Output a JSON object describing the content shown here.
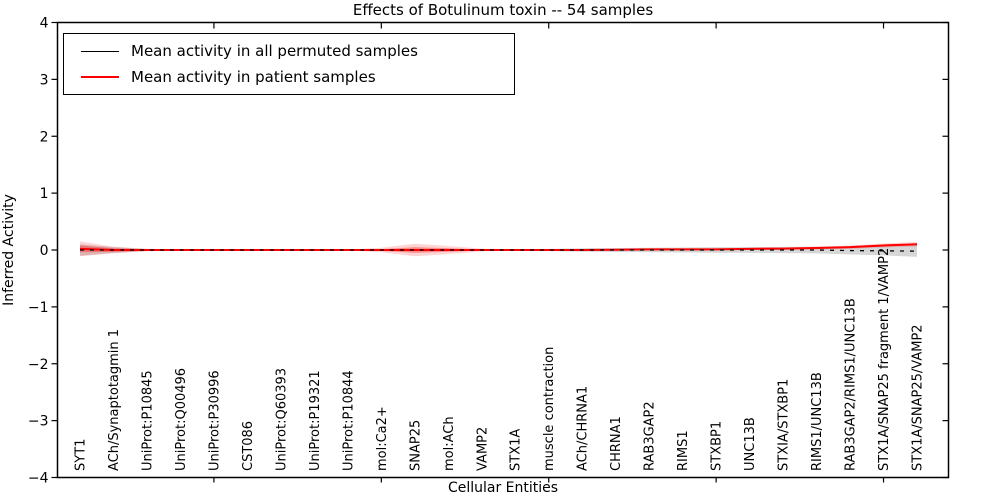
{
  "chart": {
    "title": "Effects of Botulinum toxin -- 54 samples",
    "xlabel": "Cellular Entities",
    "ylabel": "Inferred Activity"
  },
  "legend": {
    "items": [
      {
        "label": "Mean activity in all permuted samples",
        "color": "#000000"
      },
      {
        "label": "Mean activity in patient samples",
        "color": "#ff0000"
      }
    ]
  },
  "chart_data": {
    "type": "line",
    "title": "Effects of Botulinum toxin -- 54 samples",
    "xlabel": "Cellular Entities",
    "ylabel": "Inferred Activity",
    "ylim": [
      -4,
      4
    ],
    "yticks": [
      4,
      3,
      2,
      1,
      0,
      -1,
      -2,
      -3,
      -4
    ],
    "yticklabels": [
      "4",
      "3",
      "2",
      "1",
      "0",
      "−1",
      "−2",
      "−3",
      "−4"
    ],
    "grid": false,
    "legend_position": "upper left",
    "categories": [
      "SYT1",
      "ACh/Synaptotagmin 1",
      "UniProt:P10845",
      "UniProt:Q00496",
      "UniProt:P30996",
      "CST086",
      "UniProt:Q60393",
      "UniProt:P19321",
      "UniProt:P10844",
      "mol:Ca2+",
      "SNAP25",
      "mol:ACh",
      "VAMP2",
      "STX1A",
      "muscle contraction",
      "ACh/CHRNA1",
      "CHRNA1",
      "RAB3GAP2",
      "RIMS1",
      "STXBP1",
      "UNC13B",
      "STXIA/STXBP1",
      "RIMS1/UNC13B",
      "RAB3GAP2/RIMS1/UNC13B",
      "STX1A/SNAP25 fragment 1/VAMP2",
      "STX1A/SNAP25/VAMP2"
    ],
    "xtick_label_indices": [
      4,
      9,
      14,
      19,
      24
    ],
    "series": [
      {
        "name": "Mean activity in all permuted samples",
        "color": "#000000",
        "style": "dashed",
        "values": [
          0,
          0,
          0,
          0,
          0,
          0,
          0,
          0,
          0,
          0,
          0,
          0,
          0,
          0,
          0,
          0,
          0,
          0,
          0,
          0,
          0,
          0,
          0,
          -0.01,
          -0.015,
          -0.02
        ]
      },
      {
        "name": "Mean activity in patient samples",
        "color": "#ff0000",
        "style": "solid",
        "values": [
          0.02,
          0,
          0,
          0,
          0,
          0,
          0,
          0,
          0,
          0,
          0,
          0,
          0,
          0,
          0,
          0,
          0.005,
          0.01,
          0.01,
          0.012,
          0.02,
          0.025,
          0.035,
          0.05,
          0.08,
          0.1
        ]
      }
    ],
    "bands": [
      {
        "name": "permuted-confidence-band",
        "center_series": 0,
        "color": "rgba(0,0,0,0.16)",
        "halfwidths": [
          0.1,
          0.05,
          0.02,
          0.015,
          0.015,
          0.015,
          0.015,
          0.015,
          0.015,
          0.018,
          0.02,
          0.018,
          0.015,
          0.015,
          0.02,
          0.03,
          0.035,
          0.04,
          0.045,
          0.05,
          0.05,
          0.055,
          0.06,
          0.07,
          0.08,
          0.1
        ]
      },
      {
        "name": "patient-confidence-band-outer",
        "center_series": 1,
        "color": "rgba(255,0,0,0.17)",
        "halfwidths": [
          0.13,
          0.06,
          0.02,
          0.008,
          0.008,
          0.008,
          0.008,
          0.008,
          0.008,
          0.04,
          0.11,
          0.07,
          0.025,
          0.008,
          0.008,
          0.008,
          0.01,
          0.01,
          0.012,
          0.015,
          0.02,
          0.02,
          0.025,
          0.03,
          0.035,
          0.04
        ]
      },
      {
        "name": "patient-confidence-band-inner",
        "center_series": 1,
        "color": "rgba(255,0,0,0.33)",
        "halfwidths": [
          0.06,
          0.03,
          0.01,
          0.004,
          0.004,
          0.004,
          0.004,
          0.004,
          0.004,
          0.015,
          0.05,
          0.03,
          0.01,
          0.004,
          0.004,
          0.004,
          0.005,
          0.005,
          0.006,
          0.008,
          0.01,
          0.01,
          0.012,
          0.015,
          0.018,
          0.02
        ]
      }
    ]
  }
}
